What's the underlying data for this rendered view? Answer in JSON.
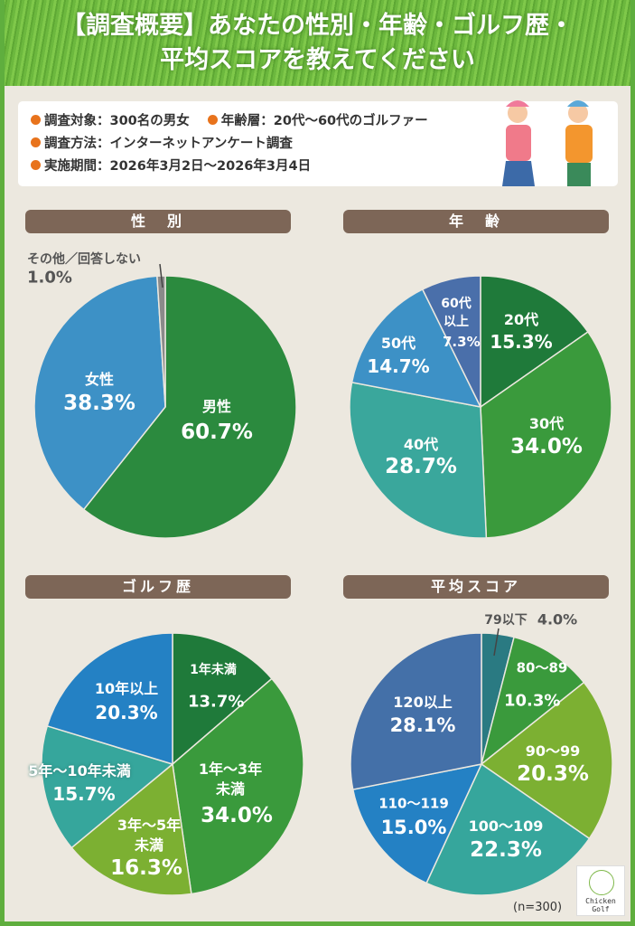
{
  "title": {
    "line1": "【調査概要】あなたの性別・年齢・ゴルフ歴・",
    "line2": "平均スコアを教えてください"
  },
  "info": {
    "target": "調査対象：300名の男女",
    "age_range": "年齢層：20代〜60代のゴルファー",
    "method": "調査方法：インターネットアンケート調査",
    "period": "実施期間：2026年3月2日〜2026年3月4日"
  },
  "sample_size": "(n=300)",
  "logo": {
    "text": "Chicken Golf"
  },
  "chart_data": [
    {
      "type": "pie",
      "title": "性　別",
      "categories": [
        "男性",
        "女性",
        "その他／回答しない"
      ],
      "values": [
        60.7,
        38.3,
        1.0
      ],
      "colors": [
        "#2b8a3e",
        "#3d91c6",
        "#8a8a8a"
      ],
      "labels": [
        "60.7%",
        "38.3%",
        "1.0%"
      ]
    },
    {
      "type": "pie",
      "title": "年　齢",
      "categories": [
        "20代",
        "30代",
        "40代",
        "50代",
        "60代以上"
      ],
      "values": [
        15.3,
        34.0,
        28.7,
        14.7,
        7.3
      ],
      "colors": [
        "#1f7a3a",
        "#3a9a3c",
        "#3aa79c",
        "#3d91c6",
        "#4a6faa"
      ],
      "labels": [
        "15.3%",
        "34.0%",
        "28.7%",
        "14.7%",
        "7.3%"
      ]
    },
    {
      "type": "pie",
      "title": "ゴルフ歴",
      "categories": [
        "1年未満",
        "1年〜3年未満",
        "3年〜5年未満",
        "5年〜10年未満",
        "10年以上"
      ],
      "values": [
        13.7,
        34.0,
        16.3,
        15.7,
        20.3
      ],
      "colors": [
        "#1f7a3a",
        "#3a9a3c",
        "#7cb032",
        "#36a69c",
        "#2481c4"
      ],
      "labels": [
        "13.7%",
        "34.0%",
        "16.3%",
        "15.7%",
        "20.3%"
      ]
    },
    {
      "type": "pie",
      "title": "平均スコア",
      "categories": [
        "79以下",
        "80〜89",
        "90〜99",
        "100〜109",
        "110〜119",
        "120以上"
      ],
      "values": [
        4.0,
        10.3,
        20.3,
        22.3,
        15.0,
        28.1
      ],
      "colors": [
        "#2a7a82",
        "#3a9a3c",
        "#7cb032",
        "#36a69c",
        "#2481c4",
        "#4470a8"
      ],
      "labels": [
        "4.0%",
        "10.3%",
        "20.3%",
        "22.3%",
        "15.0%",
        "28.1%"
      ]
    }
  ]
}
